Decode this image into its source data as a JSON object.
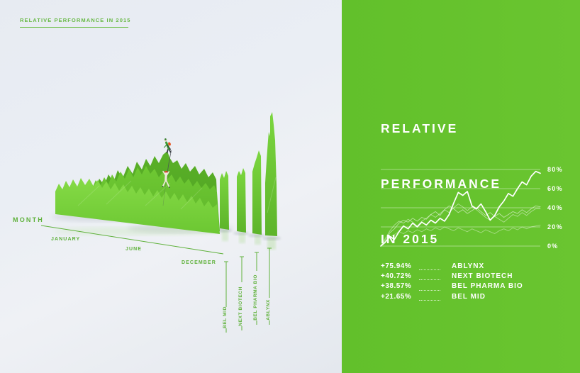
{
  "photo": {
    "header": "RELATIVE PERFORMANCE IN 2015",
    "axis": {
      "month_label": "MONTH",
      "ticks": [
        "JANUARY",
        "JUNE",
        "DECEMBER"
      ]
    },
    "series_labels": [
      "BEL MID",
      "NEXT BIOTECH",
      "BEL PHARMA BIO",
      "ABLYNX"
    ]
  },
  "panel": {
    "title_lines": [
      "RELATIVE",
      "PERFORMANCE",
      "IN 2015"
    ],
    "accent_green": "#67c42f",
    "text_color": "#ffffff",
    "legend": [
      {
        "value": "+75.94%",
        "name": "ABLYNX"
      },
      {
        "value": "+40.72%",
        "name": "NEXT BIOTECH"
      },
      {
        "value": "+38.57%",
        "name": "BEL PHARMA BIO"
      },
      {
        "value": "+21.65%",
        "name": "BEL MID"
      }
    ]
  },
  "chart_data": {
    "type": "line",
    "title": "RELATIVE PERFORMANCE IN 2015",
    "xlabel": "MONTH",
    "ylabel": "relative performance",
    "x_range": [
      "JANUARY",
      "DECEMBER"
    ],
    "ylim": [
      0,
      80
    ],
    "yticks": [
      "0%",
      "20%",
      "40%",
      "60%",
      "80%"
    ],
    "grid": true,
    "legend_position": "below",
    "series": [
      {
        "name": "ABLYNX",
        "final_change": "+75.94%",
        "values": [
          0,
          4,
          10,
          7,
          15,
          21,
          18,
          24,
          20,
          25,
          22,
          27,
          24,
          29,
          26,
          33,
          45,
          56,
          53,
          57,
          42,
          39,
          44,
          36,
          27,
          32,
          41,
          47,
          55,
          52,
          60,
          67,
          64,
          73,
          78,
          76
        ]
      },
      {
        "name": "NEXT BIOTECH",
        "final_change": "+40.72%",
        "values": [
          0,
          6,
          14,
          18,
          24,
          27,
          25,
          29,
          26,
          30,
          28,
          33,
          36,
          32,
          38,
          42,
          39,
          35,
          38,
          34,
          37,
          40,
          36,
          32,
          35,
          31,
          34,
          30,
          33,
          36,
          34,
          38,
          35,
          39,
          42,
          41
        ]
      },
      {
        "name": "BEL PHARMA BIO",
        "final_change": "+38.57%",
        "values": [
          0,
          8,
          16,
          22,
          26,
          24,
          28,
          25,
          21,
          26,
          29,
          33,
          30,
          34,
          38,
          35,
          40,
          44,
          41,
          37,
          41,
          38,
          34,
          30,
          27,
          31,
          28,
          25,
          29,
          33,
          31,
          35,
          32,
          36,
          39,
          39
        ]
      },
      {
        "name": "BEL MID",
        "final_change": "+21.65%",
        "values": [
          0,
          4,
          9,
          12,
          15,
          13,
          16,
          14,
          17,
          15,
          18,
          16,
          19,
          17,
          20,
          18,
          16,
          19,
          17,
          15,
          18,
          16,
          14,
          17,
          15,
          13,
          16,
          18,
          16,
          19,
          17,
          20,
          18,
          20,
          21,
          22
        ]
      }
    ]
  }
}
